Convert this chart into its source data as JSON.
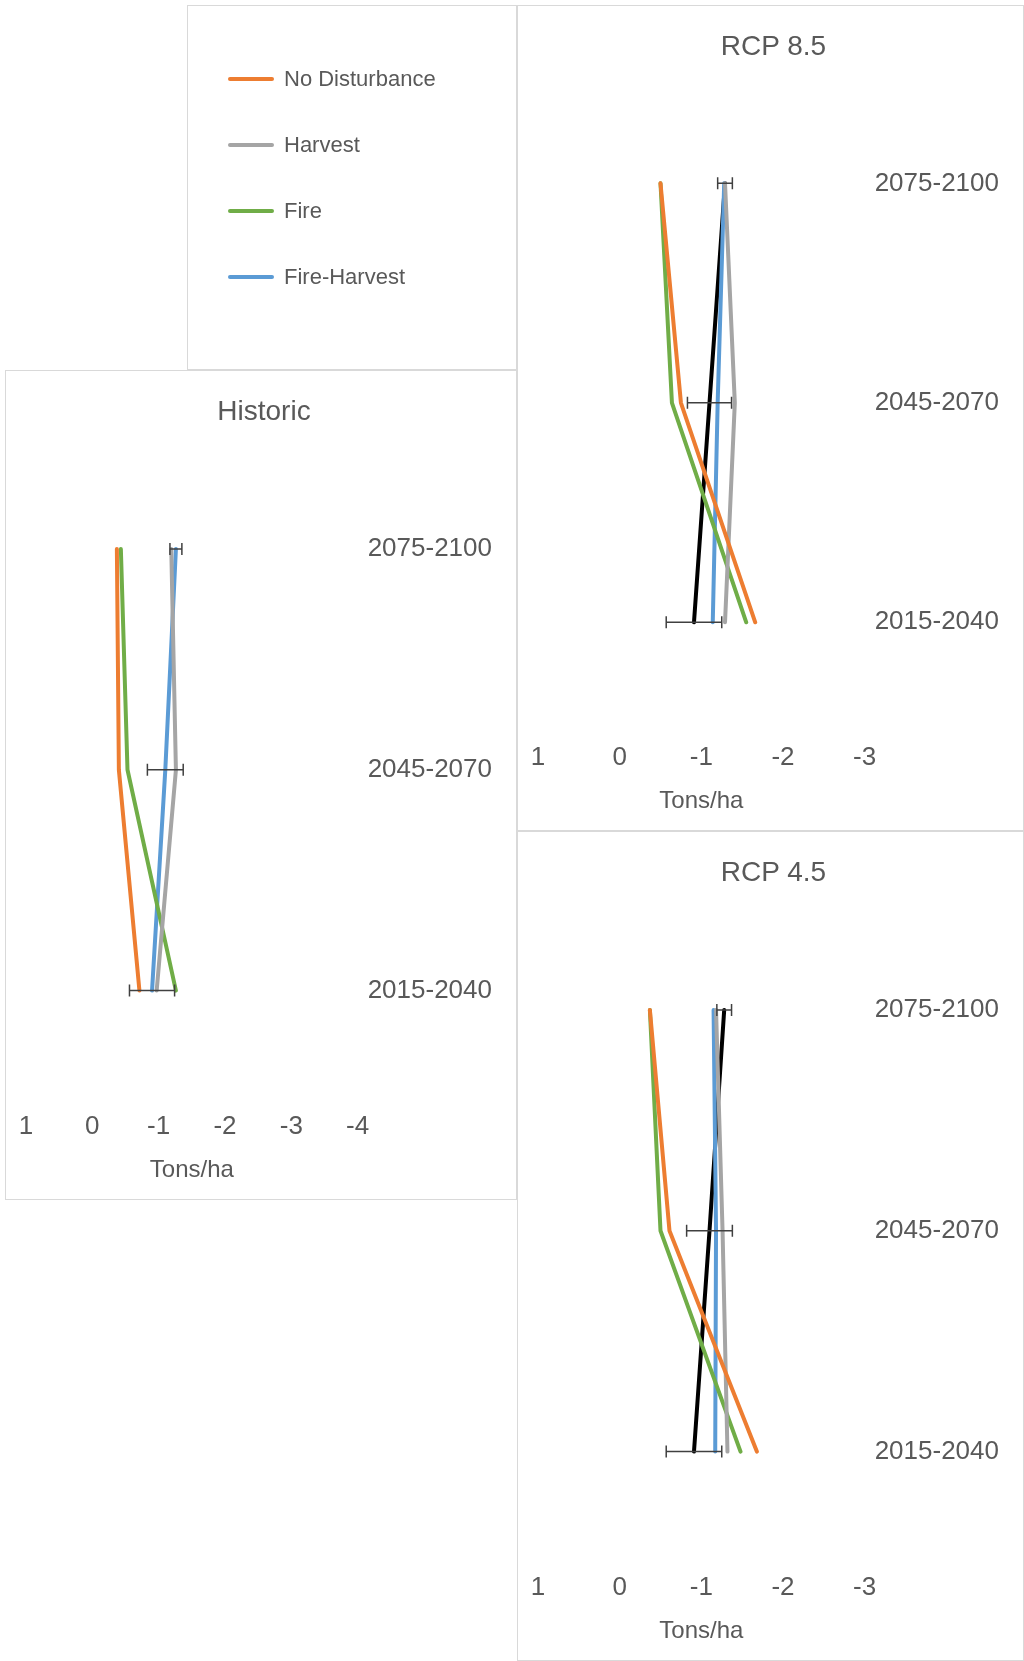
{
  "chart_data": [
    {
      "type": "line",
      "orientation": "horizontal",
      "title": "Historic",
      "xlabel": "Tons/ha",
      "categories": [
        "2075-2100",
        "2045-2070",
        "2015-2040"
      ],
      "xlim": [
        1,
        -4
      ],
      "xticks": [
        1,
        0,
        -1,
        -2,
        -3,
        -4
      ],
      "grid": false,
      "legend": "right",
      "series": [
        {
          "name": "No Disturbance",
          "color": "#ed7d31",
          "values": [
            -0.37,
            -0.4,
            -0.71
          ]
        },
        {
          "name": "Harvest",
          "color": "#a5a5a5",
          "values": [
            -1.19,
            -1.26,
            -0.97
          ]
        },
        {
          "name": "Fire",
          "color": "#70ad47",
          "values": [
            -0.43,
            -0.53,
            -1.26
          ]
        },
        {
          "name": "Fire-Harvest",
          "color": "#5b9bd5",
          "values": [
            -1.26,
            -1.1,
            -0.9
          ],
          "errors": [
            0.09,
            0.27,
            0.34
          ]
        }
      ]
    },
    {
      "type": "line",
      "orientation": "horizontal",
      "title": "RCP 4.5",
      "xlabel": "Tons/ha",
      "categories": [
        "2075-2100",
        "2045-2070",
        "2015-2040"
      ],
      "xlim": [
        1,
        -3
      ],
      "xticks": [
        1,
        0,
        -1,
        -2,
        -3
      ],
      "grid": false,
      "series": [
        {
          "color": "#ed7d31",
          "values": [
            -0.37,
            -0.61,
            -1.68
          ]
        },
        {
          "color": "#a5a5a5",
          "values": [
            -1.18,
            -1.26,
            -1.32
          ]
        },
        {
          "color": "#70ad47",
          "values": [
            -0.37,
            -0.5,
            -1.48
          ]
        },
        {
          "color": "#5b9bd5",
          "values": [
            -1.15,
            -1.18,
            -1.17
          ]
        },
        {
          "color": "#000000",
          "values": [
            -1.28,
            -1.1,
            -0.91
          ],
          "errors": [
            0.09,
            0.28,
            0.34
          ]
        }
      ]
    },
    {
      "type": "line",
      "orientation": "horizontal",
      "title": "RCP 8.5",
      "xlabel": "Tons/ha",
      "categories": [
        "2075-2100",
        "2045-2070",
        "2015-2040"
      ],
      "xlim": [
        1,
        -3
      ],
      "xticks": [
        1,
        0,
        -1,
        -2,
        -3
      ],
      "grid": false,
      "series": [
        {
          "color": "#ed7d31",
          "values": [
            -0.5,
            -0.75,
            -1.66
          ]
        },
        {
          "color": "#a5a5a5",
          "values": [
            -1.29,
            -1.41,
            -1.29
          ]
        },
        {
          "color": "#70ad47",
          "values": [
            -0.5,
            -0.64,
            -1.55
          ]
        },
        {
          "color": "#5b9bd5",
          "values": [
            -1.28,
            -1.2,
            -1.14
          ]
        },
        {
          "color": "#000000",
          "values": [
            -1.29,
            -1.1,
            -0.91
          ],
          "errors": [
            0.09,
            0.27,
            0.34
          ]
        }
      ]
    }
  ]
}
